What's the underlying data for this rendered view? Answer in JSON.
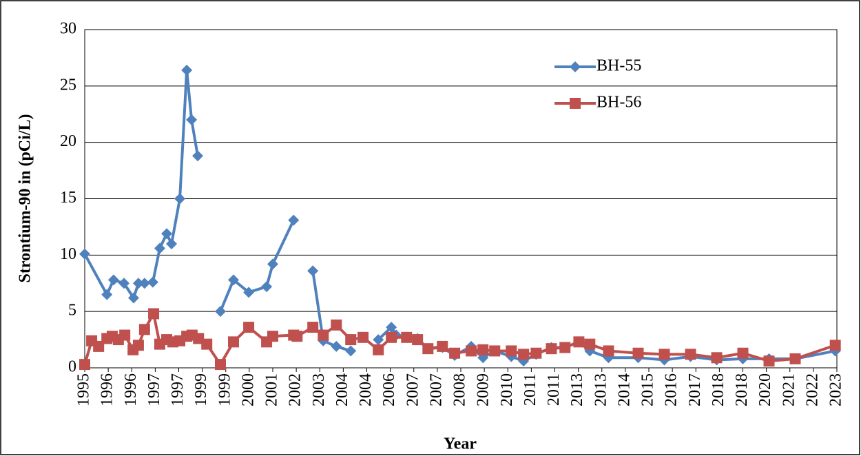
{
  "chart_data": {
    "type": "line",
    "xlabel": "Year",
    "ylabel": "Strontium-90 in (pCi/L)",
    "xlim": [
      1995,
      2023.16
    ],
    "ylim": [
      0,
      30
    ],
    "yticks": [
      0,
      5,
      10,
      15,
      20,
      25,
      30
    ],
    "xticks": [
      1995,
      {
        "value": 1995.88,
        "label": "1996"
      },
      {
        "value": 1996.76,
        "label": "1996"
      },
      {
        "value": 1997.64,
        "label": "1997"
      },
      {
        "value": 1998.52,
        "label": "1997"
      },
      {
        "value": 1999.4,
        "label": "1999"
      },
      {
        "value": 2000.28,
        "label": "1999"
      },
      {
        "value": 2001.16,
        "label": "2000"
      },
      {
        "value": 2002.04,
        "label": "2001"
      },
      {
        "value": 2002.92,
        "label": "2002"
      },
      {
        "value": 2003.8,
        "label": "2003"
      },
      {
        "value": 2004.68,
        "label": "2004"
      },
      {
        "value": 2005.56,
        "label": "2004"
      },
      {
        "value": 2006.44,
        "label": "2006"
      },
      {
        "value": 2007.32,
        "label": "2007"
      },
      {
        "value": 2008.2,
        "label": "2007"
      },
      {
        "value": 2009.08,
        "label": "2008"
      },
      {
        "value": 2009.96,
        "label": "2009"
      },
      {
        "value": 2010.84,
        "label": "2010"
      },
      {
        "value": 2011.72,
        "label": "2011"
      },
      {
        "value": 2012.6,
        "label": "2011"
      },
      {
        "value": 2013.48,
        "label": "2013"
      },
      {
        "value": 2014.36,
        "label": "2013"
      },
      {
        "value": 2015.24,
        "label": "2014"
      },
      {
        "value": 2016.12,
        "label": "2015"
      },
      {
        "value": 2017.0,
        "label": "2016"
      },
      {
        "value": 2017.88,
        "label": "2017"
      },
      {
        "value": 2018.76,
        "label": "2018"
      },
      {
        "value": 2019.64,
        "label": "2018"
      },
      {
        "value": 2020.52,
        "label": "2020"
      },
      {
        "value": 2021.4,
        "label": "2021"
      },
      {
        "value": 2022.28,
        "label": "2022"
      },
      {
        "value": 2023.16,
        "label": "2023"
      }
    ],
    "grid": true,
    "legend": "upper right",
    "series": [
      {
        "name": "BH-55",
        "color": "#4f81bd",
        "marker": "diamond",
        "x": [
          1995.0,
          1995.83,
          1996.08,
          1996.47,
          1996.83,
          1997.01,
          1997.24,
          1997.55,
          1997.81,
          1998.07,
          1998.25,
          1998.56,
          1998.82,
          1999.0,
          1999.23,
          null,
          2000.08,
          2000.57,
          2001.14,
          2001.81,
          2002.04,
          2002.82,
          null,
          2003.54,
          2003.93,
          2004.42,
          2004.96,
          null,
          2005.99,
          2006.48,
          2006.66,
          2007.05,
          2007.46,
          2007.85,
          2008.39,
          2008.85,
          2009.47,
          2009.91,
          2010.35,
          2010.97,
          2011.43,
          2011.9,
          2012.47,
          2012.98,
          2013.5,
          2013.91,
          2014.61,
          2015.72,
          2016.7,
          2017.68,
          2018.66,
          2019.64,
          2020.62,
          2021.6,
          2023.1
        ],
        "values": [
          10.1,
          6.5,
          7.8,
          7.5,
          6.2,
          7.5,
          7.5,
          7.6,
          10.6,
          11.9,
          11.0,
          15.0,
          26.4,
          22.0,
          18.8,
          null,
          5.0,
          7.8,
          6.7,
          7.2,
          9.2,
          13.1,
          null,
          8.6,
          2.4,
          1.9,
          1.5,
          null,
          2.5,
          3.6,
          2.9,
          2.7,
          2.6,
          1.7,
          1.8,
          1.1,
          1.9,
          0.9,
          1.5,
          1.0,
          0.6,
          1.2,
          1.8,
          1.8,
          2.3,
          1.5,
          0.9,
          0.9,
          0.7,
          1.0,
          0.7,
          0.8,
          0.8,
          0.8,
          1.5
        ]
      },
      {
        "name": "BH-56",
        "color": "#c0504d",
        "marker": "square",
        "x": [
          1995.0,
          1995.26,
          1995.52,
          1995.83,
          1996.03,
          1996.26,
          1996.5,
          1996.81,
          1997.01,
          1997.24,
          1997.58,
          1997.81,
          1998.07,
          1998.3,
          1998.56,
          1998.82,
          1999.02,
          1999.26,
          1999.57,
          2000.08,
          2000.57,
          2001.14,
          2001.81,
          2002.04,
          2002.82,
          2002.95,
          2003.54,
          2003.93,
          2004.42,
          2004.96,
          2005.42,
          2005.99,
          2006.48,
          2007.05,
          2007.46,
          2007.85,
          2008.39,
          2008.85,
          2009.47,
          2009.91,
          2010.35,
          2010.97,
          2011.43,
          2011.9,
          2012.47,
          2012.98,
          2013.5,
          2013.91,
          2014.61,
          2015.72,
          2016.7,
          2017.68,
          2018.66,
          2019.64,
          2020.62,
          2021.6,
          2023.1
        ],
        "values": [
          0.3,
          2.4,
          1.9,
          2.6,
          2.8,
          2.5,
          2.9,
          1.6,
          2.0,
          3.4,
          4.8,
          2.1,
          2.5,
          2.3,
          2.4,
          2.8,
          2.9,
          2.6,
          2.1,
          0.3,
          2.3,
          3.6,
          2.3,
          2.8,
          2.9,
          2.8,
          3.6,
          2.9,
          3.8,
          2.5,
          2.7,
          1.6,
          2.7,
          2.7,
          2.5,
          1.7,
          1.9,
          1.3,
          1.5,
          1.6,
          1.5,
          1.5,
          1.2,
          1.3,
          1.7,
          1.8,
          2.3,
          2.1,
          1.5,
          1.3,
          1.2,
          1.2,
          0.9,
          1.3,
          0.6,
          0.8,
          2.0
        ]
      }
    ]
  }
}
